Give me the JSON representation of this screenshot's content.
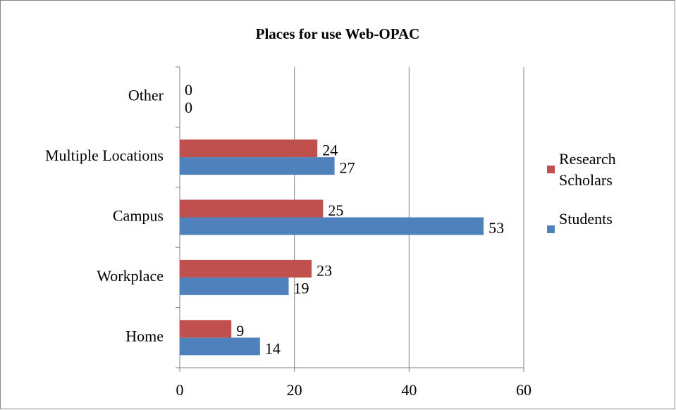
{
  "chart_data": {
    "type": "hbar",
    "title": "Places for use Web-OPAC",
    "categories": [
      "Home",
      "Workplace",
      "Campus",
      "Multiple Locations",
      "Other"
    ],
    "series": [
      {
        "name": "Students",
        "color": "#4f81bd",
        "values": [
          14,
          19,
          53,
          27,
          0
        ]
      },
      {
        "name": "Research Scholars",
        "color": "#c0504d",
        "values": [
          9,
          23,
          25,
          24,
          0
        ]
      }
    ],
    "xlim": [
      0,
      60
    ],
    "xticks": [
      0,
      20,
      40,
      60
    ],
    "grid": true,
    "legend": "right"
  }
}
